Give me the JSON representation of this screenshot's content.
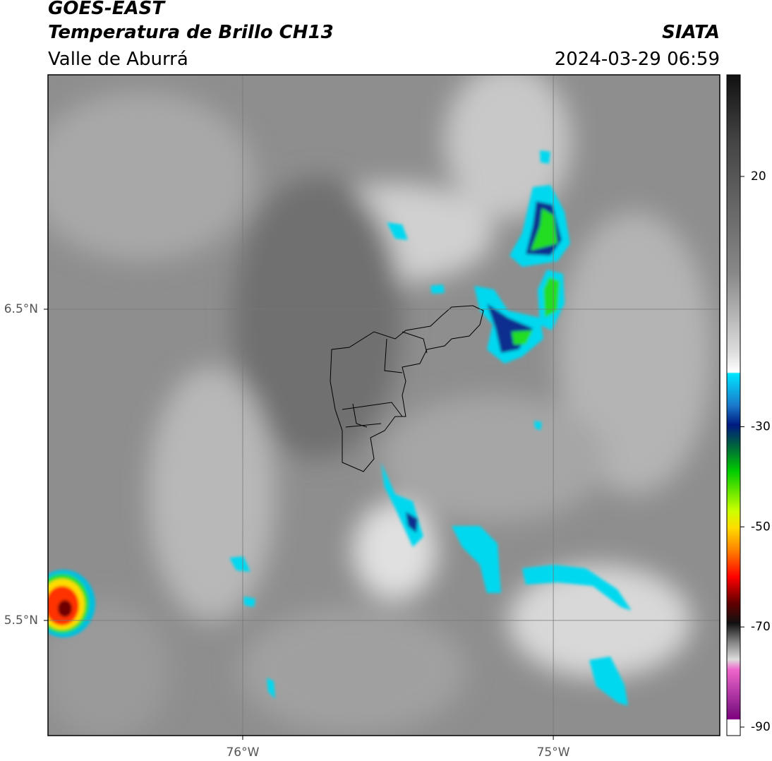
{
  "header": {
    "title": "GOES-EAST",
    "subtitle": "Temperatura de Brillo CH13",
    "region": "Valle de Aburrá",
    "source": "SIATA",
    "datetime": "2024-03-29 06:59"
  },
  "map": {
    "xlim": [
      -76.627,
      -74.464
    ],
    "ylim": [
      5.13,
      7.253
    ],
    "xticks": [
      {
        "value": -76,
        "label": "76°W"
      },
      {
        "value": -75,
        "label": "75°W"
      }
    ],
    "yticks": [
      {
        "value": 6.5,
        "label": "6.5°N"
      },
      {
        "value": 5.5,
        "label": "5.5°N"
      }
    ],
    "grid": true
  },
  "colorbar": {
    "ylim": [
      -91.7,
      40.3
    ],
    "yticks": [
      20,
      -30,
      -50,
      -70,
      -90
    ]
  }
}
